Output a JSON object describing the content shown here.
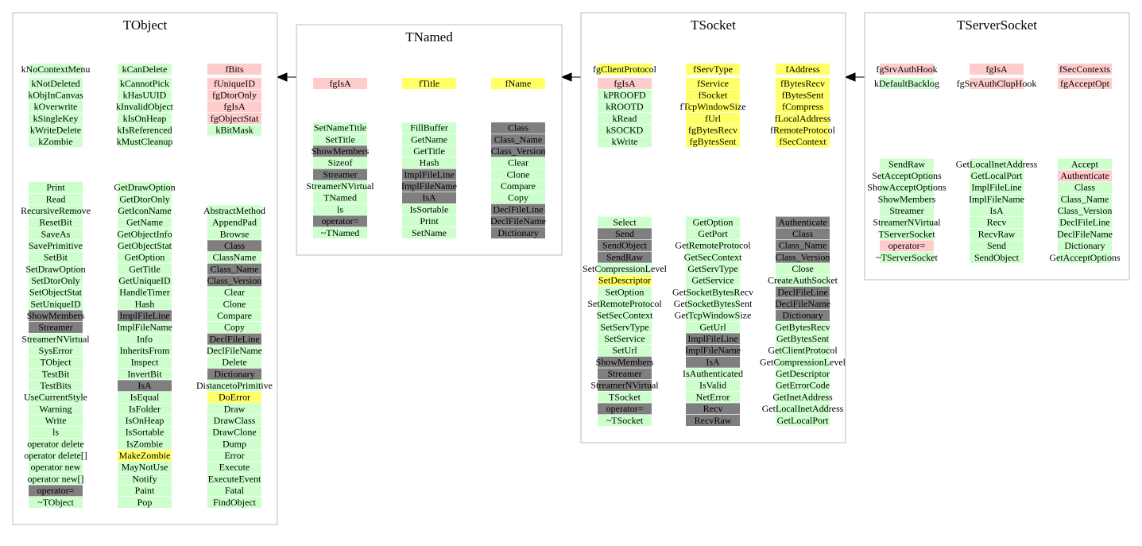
{
  "classes": [
    {
      "name": "TObject",
      "members": [
        [
          [
            "kNoContextMenu",
            "#ccffcc"
          ],
          [
            "kNotDeleted",
            "#ccffcc"
          ],
          [
            "kObjInCanvas",
            "#ccffcc"
          ],
          [
            "kOverwrite",
            "#ccffcc"
          ],
          [
            "kSingleKey",
            "#ccffcc"
          ],
          [
            "kWriteDelete",
            "#ccffcc"
          ],
          [
            "kZombie",
            "#ccffcc"
          ]
        ],
        [
          [
            "kCanDelete",
            "#ccffcc"
          ],
          [
            "kCannotPick",
            "#ccffcc"
          ],
          [
            "kHasUUID",
            "#ccffcc"
          ],
          [
            "kInvalidObject",
            "#ccffcc"
          ],
          [
            "kIsOnHeap",
            "#ccffcc"
          ],
          [
            "kIsReferenced",
            "#ccffcc"
          ],
          [
            "kMustCleanup",
            "#ccffcc"
          ]
        ],
        [
          [
            "fBits",
            "#ffcccc"
          ],
          [
            "fUniqueID",
            "#ffcccc"
          ],
          [
            "fgDtorOnly",
            "#ffcccc"
          ],
          [
            "fgIsA",
            "#ffcccc"
          ],
          [
            "fgObjectStat",
            "#ffcccc"
          ],
          [
            "kBitMask",
            "#ccffcc"
          ]
        ]
      ],
      "methods": [
        [
          [
            "Print",
            "#ccffcc"
          ],
          [
            "Read",
            "#ccffcc"
          ],
          [
            "RecursiveRemove",
            "#ccffcc"
          ],
          [
            "ResetBit",
            "#ccffcc"
          ],
          [
            "SaveAs",
            "#ccffcc"
          ],
          [
            "SavePrimitive",
            "#ccffcc"
          ],
          [
            "SetBit",
            "#ccffcc"
          ],
          [
            "SetDrawOption",
            "#ccffcc"
          ],
          [
            "SetDtorOnly",
            "#ccffcc"
          ],
          [
            "SetObjectStat",
            "#ccffcc"
          ],
          [
            "SetUniqueID",
            "#ccffcc"
          ],
          [
            "ShowMembers",
            "#7f7f7f"
          ],
          [
            "Streamer",
            "#7f7f7f"
          ],
          [
            "StreamerNVirtual",
            "#ccffcc"
          ],
          [
            "SysError",
            "#ccffcc"
          ],
          [
            "TObject",
            "#ccffcc"
          ],
          [
            "TestBit",
            "#ccffcc"
          ],
          [
            "TestBits",
            "#ccffcc"
          ],
          [
            "UseCurrentStyle",
            "#ccffcc"
          ],
          [
            "Warning",
            "#ccffcc"
          ],
          [
            "Write",
            "#ccffcc"
          ],
          [
            "ls",
            "#ccffcc"
          ],
          [
            "operator delete",
            "#ccffcc"
          ],
          [
            "operator delete[]",
            "#ccffcc"
          ],
          [
            "operator new",
            "#ccffcc"
          ],
          [
            "operator new[]",
            "#ccffcc"
          ],
          [
            "operator=",
            "#7f7f7f"
          ],
          [
            "~TObject",
            "#ccffcc"
          ]
        ],
        [
          [
            "GetDrawOption",
            "#ccffcc"
          ],
          [
            "GetDtorOnly",
            "#ccffcc"
          ],
          [
            "GetIconName",
            "#ccffcc"
          ],
          [
            "GetName",
            "#ccffcc"
          ],
          [
            "GetObjectInfo",
            "#ccffcc"
          ],
          [
            "GetObjectStat",
            "#ccffcc"
          ],
          [
            "GetOption",
            "#ccffcc"
          ],
          [
            "GetTitle",
            "#ccffcc"
          ],
          [
            "GetUniqueID",
            "#ccffcc"
          ],
          [
            "HandleTimer",
            "#ccffcc"
          ],
          [
            "Hash",
            "#ccffcc"
          ],
          [
            "ImplFileLine",
            "#7f7f7f"
          ],
          [
            "ImplFileName",
            "#ccffcc"
          ],
          [
            "Info",
            "#ccffcc"
          ],
          [
            "InheritsFrom",
            "#ccffcc"
          ],
          [
            "Inspect",
            "#ccffcc"
          ],
          [
            "InvertBit",
            "#ccffcc"
          ],
          [
            "IsA",
            "#7f7f7f"
          ],
          [
            "IsEqual",
            "#ccffcc"
          ],
          [
            "IsFolder",
            "#ccffcc"
          ],
          [
            "IsOnHeap",
            "#ccffcc"
          ],
          [
            "IsSortable",
            "#ccffcc"
          ],
          [
            "IsZombie",
            "#ccffcc"
          ],
          [
            "MakeZombie",
            "#ffff66"
          ],
          [
            "MayNotUse",
            "#ccffcc"
          ],
          [
            "Notify",
            "#ccffcc"
          ],
          [
            "Paint",
            "#ccffcc"
          ],
          [
            "Pop",
            "#ccffcc"
          ]
        ],
        [
          [
            "AbstractMethod",
            "#ccffcc"
          ],
          [
            "AppendPad",
            "#ccffcc"
          ],
          [
            "Browse",
            "#ccffcc"
          ],
          [
            "Class",
            "#7f7f7f"
          ],
          [
            "ClassName",
            "#ccffcc"
          ],
          [
            "Class_Name",
            "#7f7f7f"
          ],
          [
            "Class_Version",
            "#7f7f7f"
          ],
          [
            "Clear",
            "#ccffcc"
          ],
          [
            "Clone",
            "#ccffcc"
          ],
          [
            "Compare",
            "#ccffcc"
          ],
          [
            "Copy",
            "#ccffcc"
          ],
          [
            "DeclFileLine",
            "#7f7f7f"
          ],
          [
            "DeclFileName",
            "#ccffcc"
          ],
          [
            "Delete",
            "#ccffcc"
          ],
          [
            "Dictionary",
            "#7f7f7f"
          ],
          [
            "DistancetoPrimitive",
            "#ccffcc"
          ],
          [
            "DoError",
            "#ffff66"
          ],
          [
            "Draw",
            "#ccffcc"
          ],
          [
            "DrawClass",
            "#ccffcc"
          ],
          [
            "DrawClone",
            "#ccffcc"
          ],
          [
            "Dump",
            "#ccffcc"
          ],
          [
            "Error",
            "#ccffcc"
          ],
          [
            "Execute",
            "#ccffcc"
          ],
          [
            "ExecuteEvent",
            "#ccffcc"
          ],
          [
            "Fatal",
            "#ccffcc"
          ],
          [
            "FindObject",
            "#ccffcc"
          ]
        ]
      ]
    },
    {
      "name": "TNamed",
      "members": [
        [
          [
            "fgIsA",
            "#ffcccc"
          ]
        ],
        [
          [
            "fTitle",
            "#ffff66"
          ]
        ],
        [
          [
            "fName",
            "#ffff66"
          ]
        ]
      ],
      "methods": [
        [
          [
            "SetNameTitle",
            "#ccffcc"
          ],
          [
            "SetTitle",
            "#ccffcc"
          ],
          [
            "ShowMembers",
            "#7f7f7f"
          ],
          [
            "Sizeof",
            "#ccffcc"
          ],
          [
            "Streamer",
            "#7f7f7f"
          ],
          [
            "StreamerNVirtual",
            "#ccffcc"
          ],
          [
            "TNamed",
            "#ccffcc"
          ],
          [
            "ls",
            "#ccffcc"
          ],
          [
            "operator=",
            "#7f7f7f"
          ],
          [
            "~TNamed",
            "#ccffcc"
          ]
        ],
        [
          [
            "FillBuffer",
            "#ccffcc"
          ],
          [
            "GetName",
            "#ccffcc"
          ],
          [
            "GetTitle",
            "#ccffcc"
          ],
          [
            "Hash",
            "#ccffcc"
          ],
          [
            "ImplFileLine",
            "#7f7f7f"
          ],
          [
            "ImplFileName",
            "#7f7f7f"
          ],
          [
            "IsA",
            "#7f7f7f"
          ],
          [
            "IsSortable",
            "#ccffcc"
          ],
          [
            "Print",
            "#ccffcc"
          ],
          [
            "SetName",
            "#ccffcc"
          ]
        ],
        [
          [
            "Class",
            "#7f7f7f"
          ],
          [
            "Class_Name",
            "#7f7f7f"
          ],
          [
            "Class_Version",
            "#7f7f7f"
          ],
          [
            "Clear",
            "#ccffcc"
          ],
          [
            "Clone",
            "#ccffcc"
          ],
          [
            "Compare",
            "#ccffcc"
          ],
          [
            "Copy",
            "#ccffcc"
          ],
          [
            "DeclFileLine",
            "#7f7f7f"
          ],
          [
            "DeclFileName",
            "#7f7f7f"
          ],
          [
            "Dictionary",
            "#7f7f7f"
          ]
        ]
      ]
    },
    {
      "name": "TSocket",
      "members": [
        [
          [
            "fgClientProtocol",
            "#ffff66"
          ],
          [
            "fgIsA",
            "#ffcccc"
          ],
          [
            "kPROOFD",
            "#ccffcc"
          ],
          [
            "kROOTD",
            "#ccffcc"
          ],
          [
            "kRead",
            "#ccffcc"
          ],
          [
            "kSOCKD",
            "#ccffcc"
          ],
          [
            "kWrite",
            "#ccffcc"
          ]
        ],
        [
          [
            "fServType",
            "#ffff66"
          ],
          [
            "fService",
            "#ffff66"
          ],
          [
            "fSocket",
            "#ffff66"
          ],
          [
            "fTcpWindowSize",
            "#ffff66"
          ],
          [
            "fUrl",
            "#ffff66"
          ],
          [
            "fgBytesRecv",
            "#ffff66"
          ],
          [
            "fgBytesSent",
            "#ffff66"
          ]
        ],
        [
          [
            "fAddress",
            "#ffff66"
          ],
          [
            "fBytesRecv",
            "#ffff66"
          ],
          [
            "fBytesSent",
            "#ffff66"
          ],
          [
            "fCompress",
            "#ffff66"
          ],
          [
            "fLocalAddress",
            "#ffff66"
          ],
          [
            "fRemoteProtocol",
            "#ffff66"
          ],
          [
            "fSecContext",
            "#ffff66"
          ]
        ]
      ],
      "methods": [
        [
          [
            "Select",
            "#ccffcc"
          ],
          [
            "Send",
            "#7f7f7f"
          ],
          [
            "SendObject",
            "#7f7f7f"
          ],
          [
            "SendRaw",
            "#7f7f7f"
          ],
          [
            "SetCompressionLevel",
            "#ccffcc"
          ],
          [
            "SetDescriptor",
            "#ffff66"
          ],
          [
            "SetOption",
            "#ccffcc"
          ],
          [
            "SetRemoteProtocol",
            "#ccffcc"
          ],
          [
            "SetSecContext",
            "#ccffcc"
          ],
          [
            "SetServType",
            "#ccffcc"
          ],
          [
            "SetService",
            "#ccffcc"
          ],
          [
            "SetUrl",
            "#ccffcc"
          ],
          [
            "ShowMembers",
            "#7f7f7f"
          ],
          [
            "Streamer",
            "#7f7f7f"
          ],
          [
            "StreamerNVirtual",
            "#7f7f7f"
          ],
          [
            "TSocket",
            "#ccffcc"
          ],
          [
            "operator=",
            "#7f7f7f"
          ],
          [
            "~TSocket",
            "#ccffcc"
          ]
        ],
        [
          [
            "GetOption",
            "#ccffcc"
          ],
          [
            "GetPort",
            "#ccffcc"
          ],
          [
            "GetRemoteProtocol",
            "#ccffcc"
          ],
          [
            "GetSecContext",
            "#ccffcc"
          ],
          [
            "GetServType",
            "#ccffcc"
          ],
          [
            "GetService",
            "#ccffcc"
          ],
          [
            "GetSocketBytesRecv",
            "#ccffcc"
          ],
          [
            "GetSocketBytesSent",
            "#ccffcc"
          ],
          [
            "GetTcpWindowSize",
            "#ccffcc"
          ],
          [
            "GetUrl",
            "#ccffcc"
          ],
          [
            "ImplFileLine",
            "#7f7f7f"
          ],
          [
            "ImplFileName",
            "#7f7f7f"
          ],
          [
            "IsA",
            "#7f7f7f"
          ],
          [
            "IsAuthenticated",
            "#ccffcc"
          ],
          [
            "IsValid",
            "#ccffcc"
          ],
          [
            "NetError",
            "#ccffcc"
          ],
          [
            "Recv",
            "#7f7f7f"
          ],
          [
            "RecvRaw",
            "#7f7f7f"
          ]
        ],
        [
          [
            "Authenticate",
            "#7f7f7f"
          ],
          [
            "Class",
            "#7f7f7f"
          ],
          [
            "Class_Name",
            "#7f7f7f"
          ],
          [
            "Class_Version",
            "#7f7f7f"
          ],
          [
            "Close",
            "#ccffcc"
          ],
          [
            "CreateAuthSocket",
            "#ccffcc"
          ],
          [
            "DeclFileLine",
            "#7f7f7f"
          ],
          [
            "DeclFileName",
            "#7f7f7f"
          ],
          [
            "Dictionary",
            "#7f7f7f"
          ],
          [
            "GetBytesRecv",
            "#ccffcc"
          ],
          [
            "GetBytesSent",
            "#ccffcc"
          ],
          [
            "GetClientProtocol",
            "#ccffcc"
          ],
          [
            "GetCompressionLevel",
            "#ccffcc"
          ],
          [
            "GetDescriptor",
            "#ccffcc"
          ],
          [
            "GetErrorCode",
            "#ccffcc"
          ],
          [
            "GetInetAddress",
            "#ccffcc"
          ],
          [
            "GetLocalInetAddress",
            "#ccffcc"
          ],
          [
            "GetLocalPort",
            "#ccffcc"
          ]
        ]
      ]
    },
    {
      "name": "TServerSocket",
      "members": [
        [
          [
            "fgSrvAuthHook",
            "#ffcccc"
          ],
          [
            "kDefaultBacklog",
            "#ccffcc"
          ]
        ],
        [
          [
            "fgIsA",
            "#ffcccc"
          ],
          [
            "fgSrvAuthClupHook",
            "#ffcccc"
          ]
        ],
        [
          [
            "fSecContexts",
            "#ffcccc"
          ],
          [
            "fgAcceptOpt",
            "#ffcccc"
          ]
        ]
      ],
      "methods": [
        [
          [
            "SendRaw",
            "#ccffcc"
          ],
          [
            "SetAcceptOptions",
            "#ccffcc"
          ],
          [
            "ShowAcceptOptions",
            "#ccffcc"
          ],
          [
            "ShowMembers",
            "#ccffcc"
          ],
          [
            "Streamer",
            "#ccffcc"
          ],
          [
            "StreamerNVirtual",
            "#ccffcc"
          ],
          [
            "TServerSocket",
            "#ccffcc"
          ],
          [
            "operator=",
            "#ffcccc"
          ],
          [
            "~TServerSocket",
            "#ccffcc"
          ]
        ],
        [
          [
            "GetLocalInetAddress",
            "#ccffcc"
          ],
          [
            "GetLocalPort",
            "#ccffcc"
          ],
          [
            "ImplFileLine",
            "#ccffcc"
          ],
          [
            "ImplFileName",
            "#ccffcc"
          ],
          [
            "IsA",
            "#ccffcc"
          ],
          [
            "Recv",
            "#ccffcc"
          ],
          [
            "RecvRaw",
            "#ccffcc"
          ],
          [
            "Send",
            "#ccffcc"
          ],
          [
            "SendObject",
            "#ccffcc"
          ]
        ],
        [
          [
            "Accept",
            "#ccffcc"
          ],
          [
            "Authenticate",
            "#ffcccc"
          ],
          [
            "Class",
            "#ccffcc"
          ],
          [
            "Class_Name",
            "#ccffcc"
          ],
          [
            "Class_Version",
            "#ccffcc"
          ],
          [
            "DeclFileLine",
            "#ccffcc"
          ],
          [
            "DeclFileName",
            "#ccffcc"
          ],
          [
            "Dictionary",
            "#ccffcc"
          ],
          [
            "GetAcceptOptions",
            "#ccffcc"
          ]
        ]
      ]
    }
  ]
}
